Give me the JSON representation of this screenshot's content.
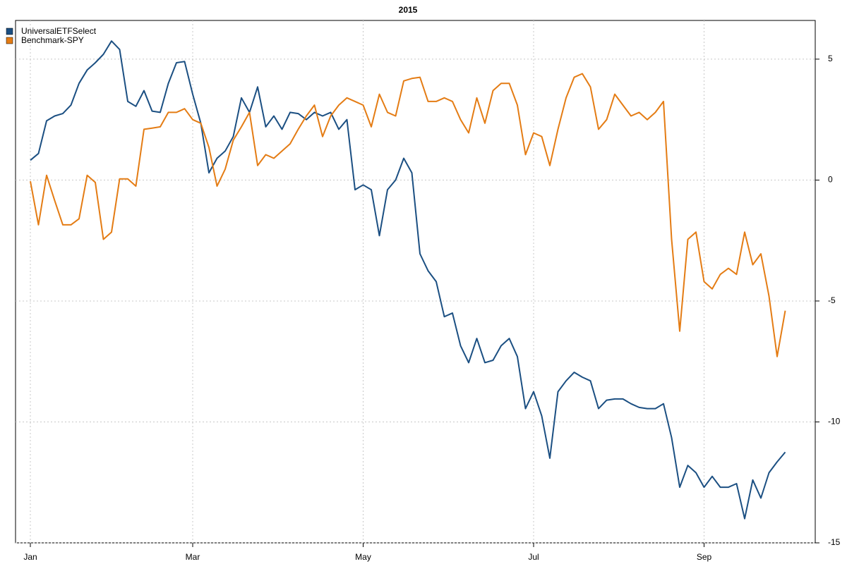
{
  "chart_data": {
    "type": "line",
    "title": "2015",
    "categories": [
      "Jan",
      null,
      null,
      null,
      null,
      null,
      null,
      null,
      null,
      null,
      null,
      null,
      null,
      null,
      null,
      null,
      null,
      null,
      null,
      null,
      "Mar",
      null,
      null,
      null,
      null,
      null,
      null,
      null,
      null,
      null,
      null,
      null,
      null,
      null,
      null,
      null,
      null,
      null,
      null,
      null,
      null,
      "May",
      null,
      null,
      null,
      null,
      null,
      null,
      null,
      null,
      null,
      null,
      null,
      null,
      null,
      null,
      null,
      null,
      null,
      null,
      null,
      null,
      "Jul",
      null,
      null,
      null,
      null,
      null,
      null,
      null,
      null,
      null,
      null,
      null,
      null,
      null,
      null,
      null,
      null,
      null,
      null,
      null,
      null,
      "Sep",
      null,
      null,
      null,
      null,
      null,
      null,
      null,
      null,
      null,
      null
    ],
    "series": [
      {
        "name": "UniversalETFSelect",
        "color": "#1b4f82",
        "values": [
          0.82,
          1.1,
          2.45,
          2.65,
          2.75,
          3.1,
          4.0,
          4.55,
          4.85,
          5.2,
          5.75,
          5.4,
          3.25,
          3.05,
          3.7,
          2.85,
          2.8,
          4.0,
          4.85,
          4.9,
          3.55,
          2.35,
          0.3,
          0.9,
          1.2,
          1.8,
          3.4,
          2.8,
          3.85,
          2.2,
          2.65,
          2.1,
          2.8,
          2.75,
          2.5,
          2.8,
          2.65,
          2.8,
          2.1,
          2.5,
          -0.4,
          -0.2,
          -0.4,
          -2.3,
          -0.4,
          0.0,
          0.9,
          0.3,
          -3.05,
          -3.75,
          -4.2,
          -5.65,
          -5.5,
          -6.85,
          -7.55,
          -6.55,
          -7.55,
          -7.45,
          -6.85,
          -6.55,
          -7.3,
          -9.45,
          -8.75,
          -9.75,
          -11.5,
          -8.75,
          -8.3,
          -7.95,
          -8.15,
          -8.3,
          -9.45,
          -9.1,
          -9.05,
          -9.05,
          -9.25,
          -9.4,
          -9.45,
          -9.45,
          -9.25,
          -10.65,
          -12.7,
          -11.8,
          -12.1,
          -12.7,
          -12.25,
          -12.7,
          -12.7,
          -12.55,
          -14.0,
          -12.4,
          -13.15,
          -12.1,
          -11.65,
          -11.25
        ]
      },
      {
        "name": "Benchmark-SPY",
        "color": "#e47c14",
        "values": [
          -0.05,
          -1.85,
          0.2,
          -0.85,
          -1.85,
          -1.85,
          -1.6,
          0.2,
          -0.1,
          -2.45,
          -2.15,
          0.05,
          0.05,
          -0.25,
          2.1,
          2.15,
          2.2,
          2.8,
          2.8,
          2.95,
          2.5,
          2.35,
          1.35,
          -0.25,
          0.45,
          1.65,
          2.2,
          2.8,
          0.6,
          1.05,
          0.9,
          1.2,
          1.5,
          2.1,
          2.65,
          3.1,
          1.8,
          2.65,
          3.1,
          3.4,
          3.25,
          3.1,
          2.2,
          3.55,
          2.8,
          2.65,
          4.1,
          4.2,
          4.25,
          3.25,
          3.25,
          3.4,
          3.25,
          2.5,
          1.95,
          3.4,
          2.35,
          3.7,
          4.0,
          4.0,
          3.1,
          1.05,
          1.95,
          1.8,
          0.6,
          2.1,
          3.4,
          4.25,
          4.4,
          3.85,
          2.1,
          2.5,
          3.55,
          3.1,
          2.65,
          2.8,
          2.5,
          2.8,
          3.25,
          -2.45,
          -6.25,
          -2.45,
          -2.15,
          -4.2,
          -4.5,
          -3.9,
          -3.65,
          -3.9,
          -2.15,
          -3.5,
          -3.05,
          -4.8,
          -7.3,
          -5.4
        ]
      }
    ],
    "ylim": [
      -15,
      6.6
    ],
    "yticks": [
      -15,
      -10,
      -5,
      0,
      5
    ],
    "grid": true,
    "legend": "top-left"
  }
}
